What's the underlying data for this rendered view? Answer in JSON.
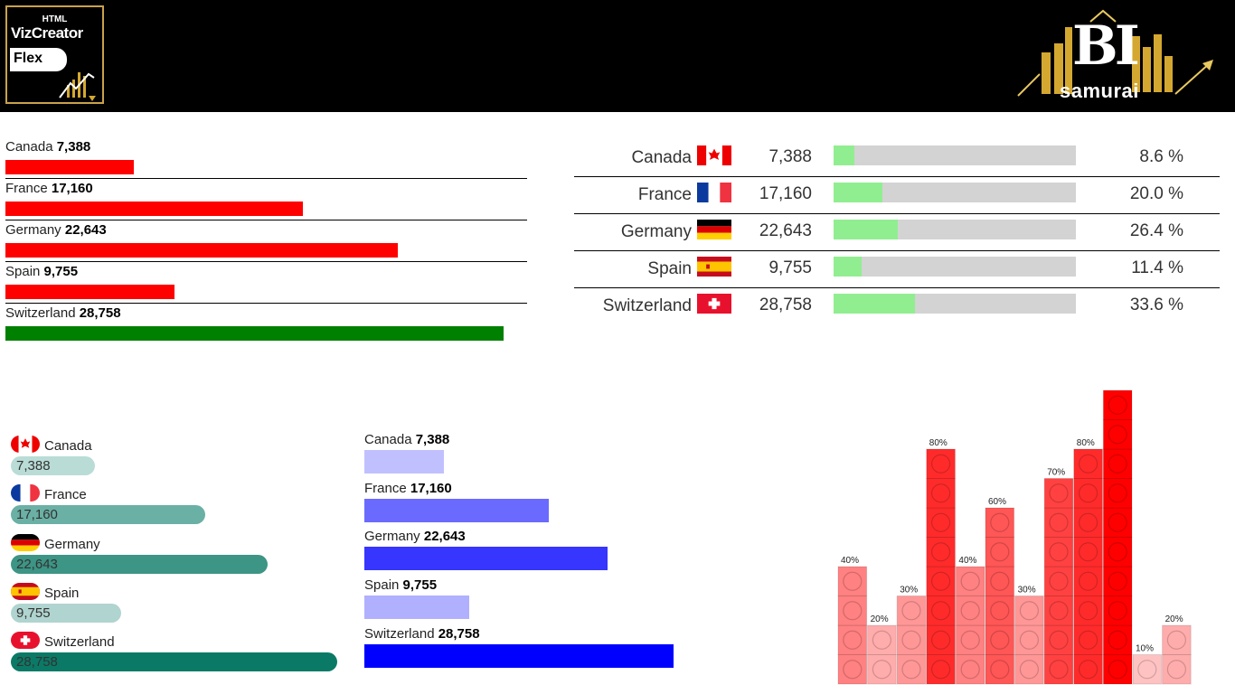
{
  "header": {
    "left_logo": {
      "line1": "HTML",
      "line2": "VizCreator",
      "line3": "Flex"
    },
    "right_logo": {
      "brand": "BI",
      "sub": "samurai"
    }
  },
  "chart_data": [
    {
      "type": "bar",
      "orientation": "horizontal",
      "categories": [
        "Canada",
        "France",
        "Germany",
        "Spain",
        "Switzerland"
      ],
      "values": [
        7388,
        17160,
        22643,
        9755,
        28758
      ],
      "value_labels": [
        "7,388",
        "17,160",
        "22,643",
        "9,755",
        "28,758"
      ],
      "colors": [
        "#ff0000",
        "#ff0000",
        "#ff0000",
        "#ff0000",
        "#008000"
      ]
    },
    {
      "type": "table",
      "categories": [
        "Canada",
        "France",
        "Germany",
        "Spain",
        "Switzerland"
      ],
      "values": [
        7388,
        17160,
        22643,
        9755,
        28758
      ],
      "value_labels": [
        "7,388",
        "17,160",
        "22,643",
        "9,755",
        "28,758"
      ],
      "percent": [
        8.6,
        20.0,
        26.4,
        11.4,
        33.6
      ],
      "percent_labels": [
        "8.6 %",
        "20.0 %",
        "26.4 %",
        "11.4 %",
        "33.6 %"
      ],
      "bar_color": "#90ee90",
      "track_color": "#d3d3d3"
    },
    {
      "type": "bar",
      "orientation": "horizontal",
      "categories": [
        "Canada",
        "France",
        "Germany",
        "Spain",
        "Switzerland"
      ],
      "values": [
        7388,
        17160,
        22643,
        9755,
        28758
      ],
      "value_labels": [
        "7,388",
        "17,160",
        "22,643",
        "9,755",
        "28,758"
      ],
      "colors": [
        "#b9dcd6",
        "#6ab0a5",
        "#3c9585",
        "#b0d4cf",
        "#0a7a66"
      ]
    },
    {
      "type": "bar",
      "orientation": "horizontal",
      "categories": [
        "Canada",
        "France",
        "Germany",
        "Spain",
        "Switzerland"
      ],
      "values": [
        7388,
        17160,
        22643,
        9755,
        28758
      ],
      "value_labels": [
        "7,388",
        "17,160",
        "22,643",
        "9,755",
        "28,758"
      ],
      "colors": [
        "#c0c0ff",
        "#6a6aff",
        "#3636ff",
        "#b0b0ff",
        "#0000ff"
      ]
    },
    {
      "type": "bar",
      "orientation": "vertical",
      "values": [
        40,
        20,
        30,
        80,
        40,
        60,
        30,
        70,
        80,
        100,
        10,
        20
      ],
      "value_labels": [
        "40%",
        "20%",
        "30%",
        "80%",
        "40%",
        "60%",
        "30%",
        "70%",
        "80%",
        "",
        "10%",
        "20%"
      ],
      "ylim": [
        0,
        100
      ]
    }
  ]
}
